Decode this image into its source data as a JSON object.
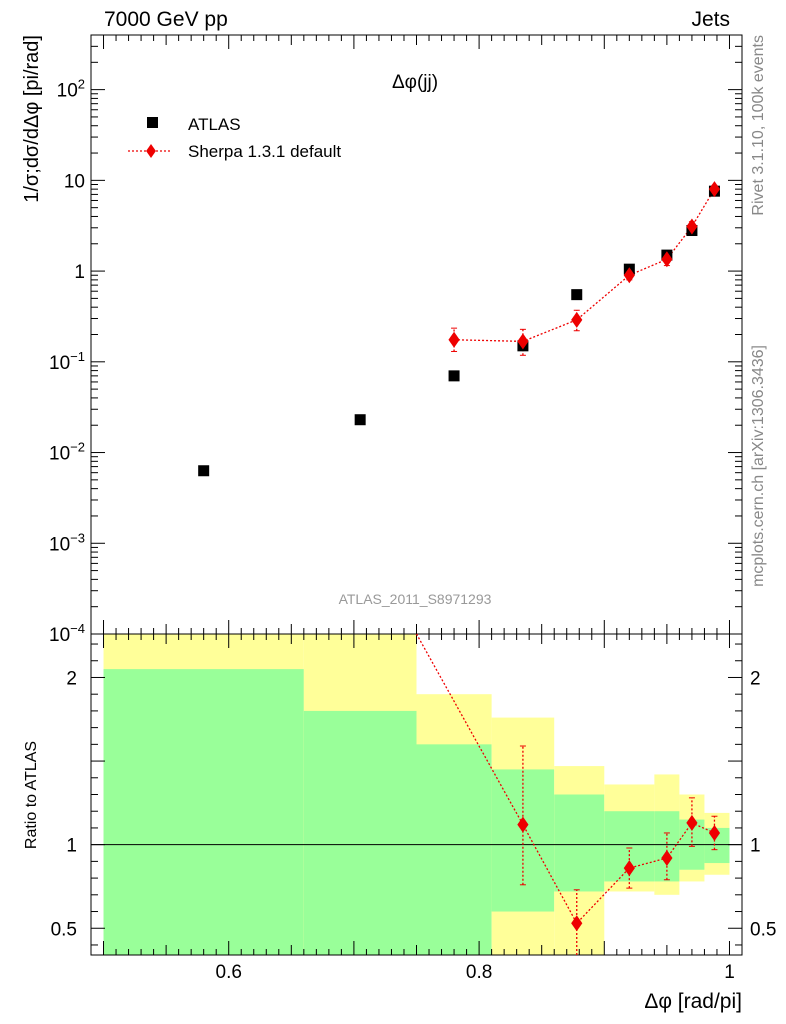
{
  "header": {
    "left": "7000 GeV pp",
    "right": "Jets"
  },
  "side_labels": {
    "top": "Rivet 3.1.10,  100k events",
    "bottom": "mcplots.cern.ch [arXiv:1306.3436]"
  },
  "chart_data": [
    {
      "type": "scatter",
      "title": "Δφ(jj)",
      "watermark": "ATLAS_2011_S8971293",
      "ylabel": "1/σ;dσ/dΔφ [pi/rad]",
      "xlim": [
        0.49,
        1.01
      ],
      "ylim": [
        0.0001,
        400
      ],
      "yscale": "log",
      "yticks": [
        {
          "value": 0.0001,
          "base": "10",
          "exp": "−4"
        },
        {
          "value": 0.001,
          "base": "10",
          "exp": "−3"
        },
        {
          "value": 0.01,
          "base": "10",
          "exp": "−2"
        },
        {
          "value": 0.1,
          "base": "10",
          "exp": "−1"
        },
        {
          "value": 1,
          "base": "1",
          "exp": ""
        },
        {
          "value": 10,
          "base": "10",
          "exp": ""
        },
        {
          "value": 100,
          "base": "10",
          "exp": "2"
        }
      ],
      "legend_position": "top-left",
      "series": [
        {
          "name": "ATLAS",
          "color": "#000000",
          "marker": "square",
          "x": [
            0.58,
            0.705,
            0.78,
            0.835,
            0.878,
            0.92,
            0.95,
            0.97,
            0.988
          ],
          "y": [
            0.0063,
            0.023,
            0.07,
            0.15,
            0.55,
            1.05,
            1.5,
            2.8,
            7.6
          ]
        },
        {
          "name": "Sherpa 1.3.1 default",
          "color": "#ee0000",
          "marker": "diamond",
          "line": "dotted",
          "x": [
            0.78,
            0.835,
            0.878,
            0.92,
            0.95,
            0.97,
            0.988
          ],
          "y": [
            0.175,
            0.168,
            0.29,
            0.9,
            1.35,
            3.1,
            8.0
          ],
          "yerr_low": [
            0.045,
            0.05,
            0.07,
            0.1,
            0.2,
            0.4,
            0.8
          ],
          "yerr_high": [
            0.06,
            0.06,
            0.08,
            0.1,
            0.2,
            0.4,
            0.8
          ]
        }
      ]
    },
    {
      "type": "line",
      "ylabel": "Ratio to ATLAS",
      "xlabel": "Δφ [rad/pi]",
      "xlim": [
        0.49,
        1.01
      ],
      "ylim": [
        0.34,
        2.26
      ],
      "xticks": [
        0.6,
        0.8,
        1
      ],
      "xtick_labels": [
        "0.6",
        "0.8",
        "1"
      ],
      "yticks": [
        0.5,
        1,
        2
      ],
      "ytick_labels": [
        "0.5",
        "1",
        "2"
      ],
      "reference_line": 1,
      "colors": {
        "band_inner": "#99ff99",
        "band_outer": "#ffff99"
      },
      "bands": [
        {
          "x_lo": 0.5,
          "x_hi": 0.66,
          "inner_lo": 0.34,
          "inner_hi": 2.05,
          "outer_lo": 0.34,
          "outer_hi": 2.26
        },
        {
          "x_lo": 0.66,
          "x_hi": 0.75,
          "inner_lo": 0.34,
          "inner_hi": 1.8,
          "outer_lo": 0.34,
          "outer_hi": 2.26
        },
        {
          "x_lo": 0.75,
          "x_hi": 0.81,
          "inner_lo": 0.34,
          "inner_hi": 1.6,
          "outer_lo": 0.34,
          "outer_hi": 1.9
        },
        {
          "x_lo": 0.81,
          "x_hi": 0.86,
          "inner_lo": 0.6,
          "inner_hi": 1.45,
          "outer_lo": 0.34,
          "outer_hi": 1.76
        },
        {
          "x_lo": 0.86,
          "x_hi": 0.9,
          "inner_lo": 0.72,
          "inner_hi": 1.3,
          "outer_lo": 0.34,
          "outer_hi": 1.47
        },
        {
          "x_lo": 0.9,
          "x_hi": 0.94,
          "inner_lo": 0.78,
          "inner_hi": 1.2,
          "outer_lo": 0.72,
          "outer_hi": 1.36
        },
        {
          "x_lo": 0.94,
          "x_hi": 0.96,
          "inner_lo": 0.78,
          "inner_hi": 1.2,
          "outer_lo": 0.7,
          "outer_hi": 1.42
        },
        {
          "x_lo": 0.96,
          "x_hi": 0.98,
          "inner_lo": 0.85,
          "inner_hi": 1.15,
          "outer_lo": 0.78,
          "outer_hi": 1.3
        },
        {
          "x_lo": 0.98,
          "x_hi": 1.0,
          "inner_lo": 0.89,
          "inner_hi": 1.1,
          "outer_lo": 0.82,
          "outer_hi": 1.19
        }
      ],
      "series": [
        {
          "name": "Sherpa 1.3.1 default",
          "color": "#ee0000",
          "x": [
            0.835,
            0.878,
            0.92,
            0.95,
            0.97,
            0.988
          ],
          "y": [
            1.12,
            0.53,
            0.86,
            0.92,
            1.13,
            1.07
          ],
          "yerr_low": [
            0.36,
            0.19,
            0.12,
            0.13,
            0.14,
            0.1
          ],
          "yerr_high": [
            0.47,
            0.2,
            0.12,
            0.15,
            0.15,
            0.1
          ],
          "offscale_start_x": 0.75
        }
      ]
    }
  ]
}
